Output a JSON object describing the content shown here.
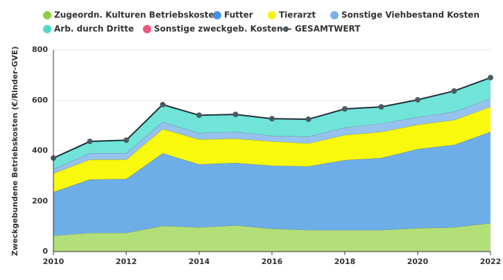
{
  "chart_data": {
    "type": "area",
    "stacked": true,
    "y_label": "Zweckgebundene Betriebskosten (€/Rinder-GVE)",
    "x": [
      2010,
      2011,
      2012,
      2013,
      2014,
      2015,
      2016,
      2017,
      2018,
      2019,
      2020,
      2021,
      2022
    ],
    "xlim": [
      2010,
      2022
    ],
    "xticks": [
      2010,
      2012,
      2014,
      2016,
      2018,
      2020,
      2022
    ],
    "ylim": [
      0,
      800
    ],
    "yticks": [
      0,
      200,
      400,
      600,
      800
    ],
    "grid": true,
    "series": [
      {
        "name": "Zugeordn. Kulturen Betriebskosten",
        "color": "#b3df78",
        "legend_color": "#8ccf45",
        "values": [
          63,
          74,
          74,
          102,
          96,
          104,
          91,
          85,
          85,
          85,
          93,
          96,
          113
        ]
      },
      {
        "name": "Futter",
        "color": "#6eaee8",
        "legend_color": "#4a90e2",
        "values": [
          173,
          212,
          214,
          288,
          250,
          248,
          250,
          253,
          278,
          286,
          314,
          327,
          362
        ]
      },
      {
        "name": "Tierarzt",
        "color": "#f9f90e",
        "legend_color": "#f5f500",
        "values": [
          74,
          79,
          77,
          96,
          99,
          96,
          96,
          91,
          99,
          104,
          96,
          99,
          99
        ]
      },
      {
        "name": "Sonstige Viehbestand Kosten",
        "color": "#96c2ef",
        "legend_color": "#7ab3ec",
        "values": [
          17,
          25,
          25,
          28,
          25,
          27,
          22,
          27,
          30,
          33,
          30,
          33,
          33
        ]
      },
      {
        "name": "Arb. durch Dritte",
        "color": "#70e4d9",
        "legend_color": "#4fd9cb",
        "values": [
          44,
          47,
          52,
          69,
          71,
          69,
          68,
          69,
          74,
          66,
          69,
          82,
          83
        ]
      },
      {
        "name": "Sonstige zweckgeb. Kosten",
        "color": "#ee5580",
        "legend_color": "#ee5580",
        "values": [
          0,
          0,
          0,
          0,
          0,
          0,
          0,
          0,
          0,
          0,
          0,
          0,
          0
        ]
      },
      {
        "name": "GESAMTWERT",
        "type": "line",
        "color": "#222f36",
        "legend_color": "#4a5b66",
        "values": [
          371,
          437,
          442,
          583,
          541,
          544,
          527,
          525,
          566,
          574,
          602,
          637,
          690
        ]
      }
    ]
  }
}
